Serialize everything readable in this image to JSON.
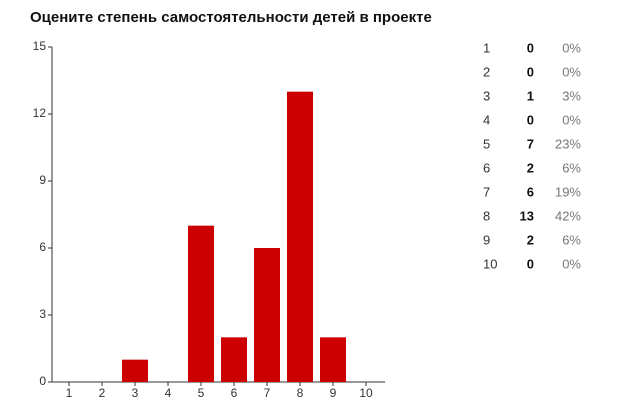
{
  "chart_data": {
    "type": "bar",
    "title": "Оцените степень самостоятельности детей в проекте",
    "categories": [
      "1",
      "2",
      "3",
      "4",
      "5",
      "6",
      "7",
      "8",
      "9",
      "10"
    ],
    "values": [
      0,
      0,
      1,
      0,
      7,
      2,
      6,
      13,
      2,
      0
    ],
    "shares": [
      "0%",
      "0%",
      "3%",
      "0%",
      "23%",
      "6%",
      "19%",
      "42%",
      "6%",
      "0%"
    ],
    "color": "#cc0000",
    "ylim": [
      0,
      15
    ],
    "yticks": [
      0,
      3,
      6,
      9,
      12,
      15
    ],
    "grid": false
  }
}
